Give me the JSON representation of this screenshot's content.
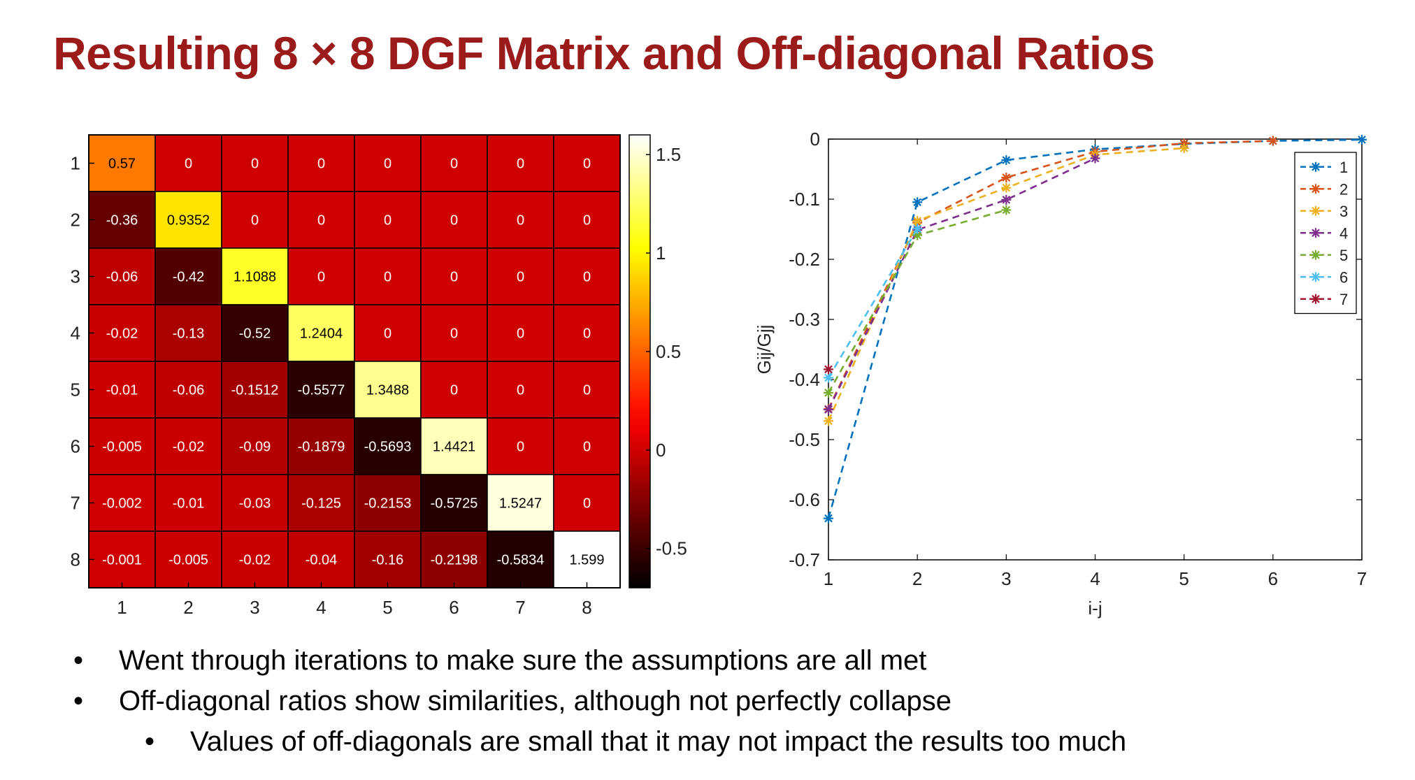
{
  "title": "Resulting 8 × 8 DGF Matrix and Off-diagonal Ratios",
  "bullets": [
    {
      "level": 1,
      "text": "Went through iterations to make sure the assumptions are all met"
    },
    {
      "level": 1,
      "text": "Off-diagonal ratios show similarities, although not perfectly collapse"
    },
    {
      "level": 2,
      "text": "Values of off-diagonals are small that it may not impact the results too much"
    }
  ],
  "chart_data": [
    {
      "type": "heatmap",
      "title": "",
      "row_labels": [
        "1",
        "2",
        "3",
        "4",
        "5",
        "6",
        "7",
        "8"
      ],
      "col_labels": [
        "1",
        "2",
        "3",
        "4",
        "5",
        "6",
        "7",
        "8"
      ],
      "values": [
        [
          0.57,
          0,
          0,
          0,
          0,
          0,
          0,
          0
        ],
        [
          -0.36,
          0.9352,
          0,
          0,
          0,
          0,
          0,
          0
        ],
        [
          -0.06,
          -0.42,
          1.1088,
          0,
          0,
          0,
          0,
          0
        ],
        [
          -0.02,
          -0.13,
          -0.52,
          1.2404,
          0,
          0,
          0,
          0
        ],
        [
          -0.01,
          -0.06,
          -0.1512,
          -0.5577,
          1.3488,
          0,
          0,
          0
        ],
        [
          -0.005,
          -0.02,
          -0.09,
          -0.1879,
          -0.5693,
          1.4421,
          0,
          0
        ],
        [
          -0.002,
          -0.01,
          -0.03,
          -0.125,
          -0.2153,
          -0.5725,
          1.5247,
          0
        ],
        [
          -0.001,
          -0.005,
          -0.02,
          -0.04,
          -0.16,
          -0.2198,
          -0.5834,
          1.599
        ]
      ],
      "value_labels": [
        [
          "0.57",
          "0",
          "0",
          "0",
          "0",
          "0",
          "0",
          "0"
        ],
        [
          "-0.36",
          "0.9352",
          "0",
          "0",
          "0",
          "0",
          "0",
          "0"
        ],
        [
          "-0.06",
          "-0.42",
          "1.1088",
          "0",
          "0",
          "0",
          "0",
          "0"
        ],
        [
          "-0.02",
          "-0.13",
          "-0.52",
          "1.2404",
          "0",
          "0",
          "0",
          "0"
        ],
        [
          "-0.01",
          "-0.06",
          "-0.1512",
          "-0.5577",
          "1.3488",
          "0",
          "0",
          "0"
        ],
        [
          "-0.005",
          "-0.02",
          "-0.09",
          "-0.1879",
          "-0.5693",
          "1.4421",
          "0",
          "0"
        ],
        [
          "-0.002",
          "-0.01",
          "-0.03",
          "-0.125",
          "-0.2153",
          "-0.5725",
          "1.5247",
          "0"
        ],
        [
          "-0.001",
          "-0.005",
          "-0.02",
          "-0.04",
          "-0.16",
          "-0.2198",
          "-0.5834",
          "1.599"
        ]
      ],
      "colormap": "hot",
      "clim": [
        -0.7,
        1.6
      ],
      "colorbar_ticks": [
        -0.5,
        0,
        0.5,
        1,
        1.5
      ],
      "colorbar_tick_labels": [
        "-0.5",
        "0",
        "0.5",
        "1",
        "1.5"
      ],
      "colors": {
        "cell_border": "#000000",
        "label_on_light": "#000000",
        "label_on_dark": "#ffffff"
      }
    },
    {
      "type": "line",
      "title": "",
      "xlabel": "i-j",
      "ylabel": "G_ij/G_jj",
      "xlim": [
        1,
        7
      ],
      "ylim": [
        -0.7,
        0
      ],
      "xticks": [
        1,
        2,
        3,
        4,
        5,
        6,
        7
      ],
      "xtick_labels": [
        "1",
        "2",
        "3",
        "4",
        "5",
        "6",
        "7"
      ],
      "yticks": [
        0,
        -0.1,
        -0.2,
        -0.3,
        -0.4,
        -0.5,
        -0.6,
        -0.7
      ],
      "ytick_labels": [
        "0",
        "-0.1",
        "-0.2",
        "-0.3",
        "-0.4",
        "-0.5",
        "-0.6",
        "-0.7"
      ],
      "grid": false,
      "legend_position": "top-right",
      "line_style": "dashed",
      "marker": "asterisk",
      "series": [
        {
          "name": "1",
          "color": "#0072BD",
          "x": [
            1,
            2,
            3,
            4,
            5,
            6,
            7
          ],
          "y": [
            -0.631,
            -0.105,
            -0.035,
            -0.017,
            -0.008,
            -0.003,
            -0.001
          ]
        },
        {
          "name": "2",
          "color": "#D95319",
          "x": [
            1,
            2,
            3,
            4,
            5,
            6
          ],
          "y": [
            -0.449,
            -0.139,
            -0.064,
            -0.021,
            -0.007,
            -0.003
          ]
        },
        {
          "name": "3",
          "color": "#EDB120",
          "x": [
            1,
            2,
            3,
            4,
            5
          ],
          "y": [
            -0.469,
            -0.136,
            -0.081,
            -0.026,
            -0.015
          ]
        },
        {
          "name": "4",
          "color": "#7E2F8E",
          "x": [
            1,
            2,
            3,
            4
          ],
          "y": [
            -0.45,
            -0.151,
            -0.101,
            -0.032
          ]
        },
        {
          "name": "5",
          "color": "#77AC30",
          "x": [
            1,
            2,
            3
          ],
          "y": [
            -0.422,
            -0.16,
            -0.118
          ]
        },
        {
          "name": "6",
          "color": "#4DBEEE",
          "x": [
            1,
            2
          ],
          "y": [
            -0.397,
            -0.149
          ]
        },
        {
          "name": "7",
          "color": "#A2142F",
          "x": [
            1
          ],
          "y": [
            -0.383
          ]
        }
      ]
    }
  ]
}
